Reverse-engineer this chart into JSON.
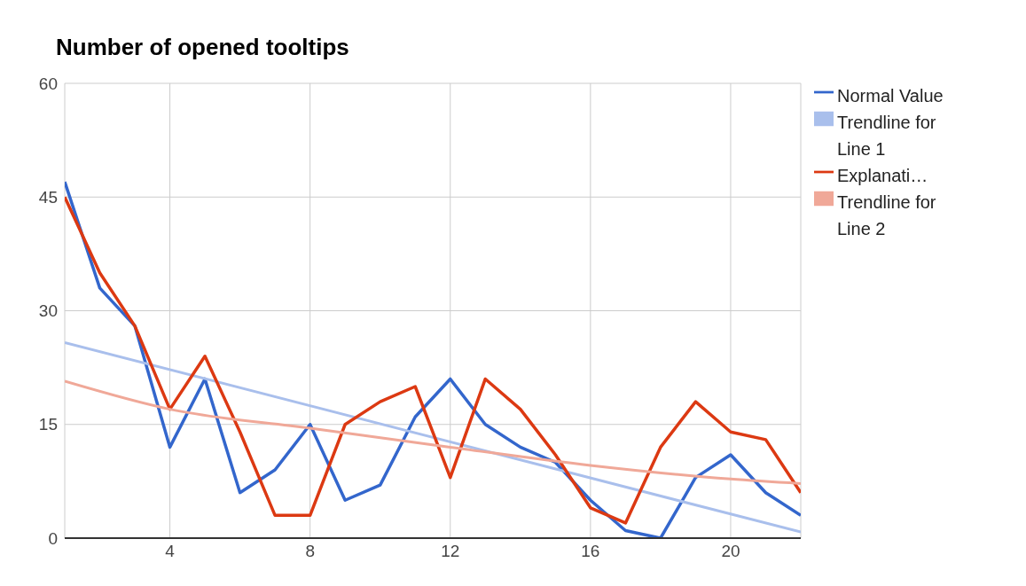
{
  "chart_data": {
    "type": "line",
    "title": "Number of opened tooltips",
    "x": [
      1,
      2,
      3,
      4,
      5,
      6,
      7,
      8,
      9,
      10,
      11,
      12,
      13,
      14,
      15,
      16,
      17,
      18,
      19,
      20,
      21,
      22
    ],
    "series": [
      {
        "name": "Normal Value",
        "color": "#3366cc",
        "values": [
          47,
          33,
          28,
          12,
          21,
          6,
          9,
          15,
          5,
          7,
          16,
          21,
          15,
          12,
          10,
          5,
          1,
          0,
          8,
          11,
          6,
          3
        ]
      },
      {
        "name": "Trendline for Line 1",
        "type": "line",
        "color": "#a9bfec",
        "x": [
          1,
          22
        ],
        "values": [
          25.8,
          0.8
        ]
      },
      {
        "name": "Explanati…",
        "color": "#dc3912",
        "values": [
          45,
          35,
          28,
          17,
          24,
          14,
          3,
          3,
          15,
          18,
          20,
          8,
          21,
          17,
          11,
          4,
          2,
          12,
          18,
          14,
          13,
          6
        ]
      },
      {
        "name": "Trendline for Line 2",
        "type": "line",
        "color": "#f0a898",
        "x": [
          1,
          4,
          8,
          12,
          16,
          20,
          22
        ],
        "values": [
          20.7,
          17,
          14.5,
          12,
          9.6,
          7.8,
          7.2
        ]
      }
    ],
    "xlim": [
      1,
      22
    ],
    "xticks": [
      4,
      8,
      12,
      16,
      20
    ],
    "ylim": [
      0,
      60
    ],
    "yticks": [
      0,
      15,
      30,
      45,
      60
    ],
    "grid": true,
    "legend": "right",
    "marker": "none",
    "line_style": "solid"
  }
}
